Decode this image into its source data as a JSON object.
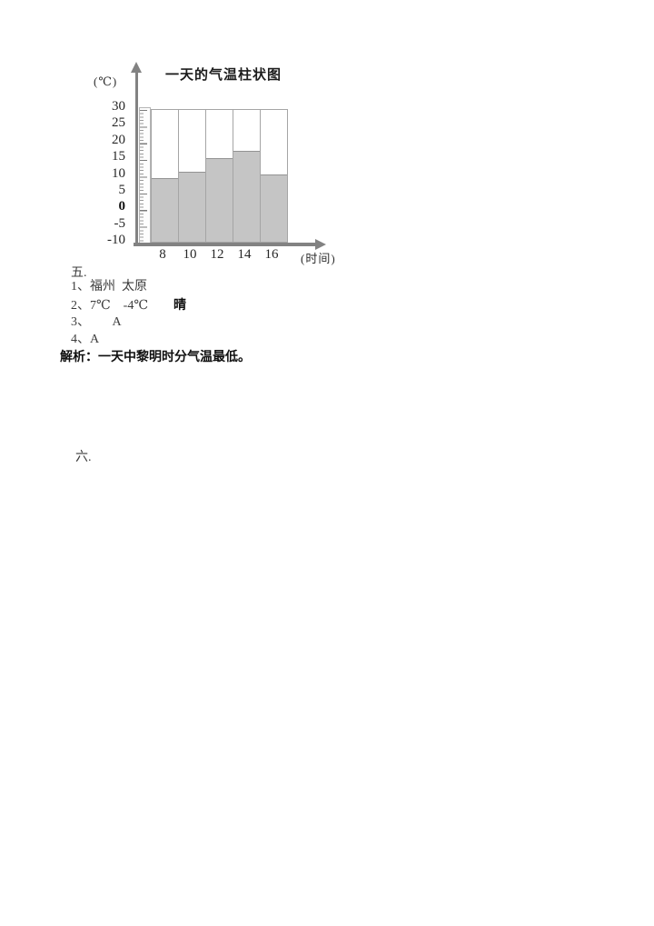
{
  "chart": {
    "title": "一天的气温柱状图",
    "y_axis_unit": "(℃)",
    "x_axis_unit": "(时间)",
    "colors": {
      "bar_fill": "#c5c5c5",
      "bar_border": "#a5a5a5",
      "axis": "#828282"
    }
  },
  "chart_data": {
    "type": "bar",
    "title": "一天的气温柱状图",
    "categories": [
      "8",
      "10",
      "12",
      "14",
      "16"
    ],
    "values": [
      8,
      10,
      14,
      16,
      9
    ],
    "xlabel": "(时间)",
    "ylabel": "(℃)",
    "ylim": [
      -10,
      30
    ],
    "yticks": [
      30,
      25,
      20,
      15,
      10,
      5,
      0,
      -5,
      -10
    ],
    "column_outline_max": 30,
    "grid": false,
    "legend": false
  },
  "answers": {
    "section_label": "五.",
    "lines": [
      {
        "id": "ans-1",
        "segments": [
          {
            "t": "1、福州  太原",
            "b": false
          }
        ]
      },
      {
        "id": "ans-2",
        "segments": [
          {
            "t": "2、7℃    -4℃        ",
            "b": false
          },
          {
            "t": "晴",
            "b": true
          }
        ]
      },
      {
        "id": "ans-3",
        "segments": [
          {
            "t": "3、       A",
            "b": false
          }
        ]
      },
      {
        "id": "ans-4",
        "segments": [
          {
            "t": "4、A",
            "b": false
          }
        ]
      },
      {
        "id": "analysis",
        "segments": [
          {
            "t": "解析：一天中黎明时分气温最低。",
            "b": true
          }
        ]
      }
    ],
    "next_section_label": "六."
  }
}
